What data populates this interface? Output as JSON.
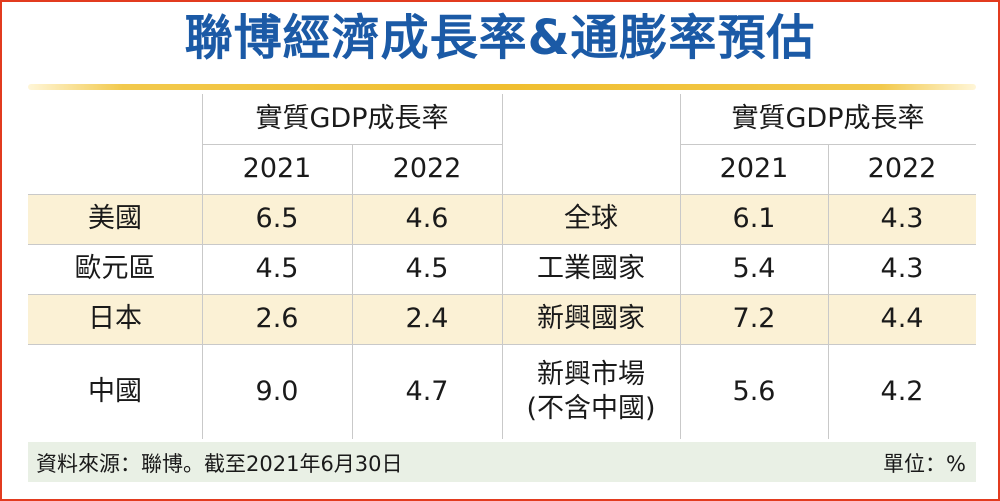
{
  "title": "聯博經濟成長率&通膨率預估",
  "left_table": {
    "group_header": "實質GDP成長率",
    "years": [
      "2021",
      "2022"
    ],
    "rows": [
      {
        "region": "美國",
        "y2021": "6.5",
        "y2022": "4.6"
      },
      {
        "region": "歐元區",
        "y2021": "4.5",
        "y2022": "4.5"
      },
      {
        "region": "日本",
        "y2021": "2.6",
        "y2022": "2.4"
      },
      {
        "region": "中國",
        "y2021": "9.0",
        "y2022": "4.7"
      }
    ]
  },
  "right_table": {
    "group_header": "實質GDP成長率",
    "years": [
      "2021",
      "2022"
    ],
    "rows": [
      {
        "region": "全球",
        "y2021": "6.1",
        "y2022": "4.3"
      },
      {
        "region": "工業國家",
        "y2021": "5.4",
        "y2022": "4.3"
      },
      {
        "region": "新興國家",
        "y2021": "7.2",
        "y2022": "4.4"
      },
      {
        "region_line1": "新興市場",
        "region_line2": "(不含中國)",
        "y2021": "5.6",
        "y2022": "4.2"
      }
    ]
  },
  "footer": {
    "source": "資料來源：聯博。截至2021年6月30日",
    "unit": "單位：%"
  },
  "colors": {
    "title": "#1b5aa6",
    "border": "#e23b1f",
    "gold_line": "#f0be2f",
    "band": "#fbf1d5",
    "footer_bg": "#e9f0e5"
  }
}
